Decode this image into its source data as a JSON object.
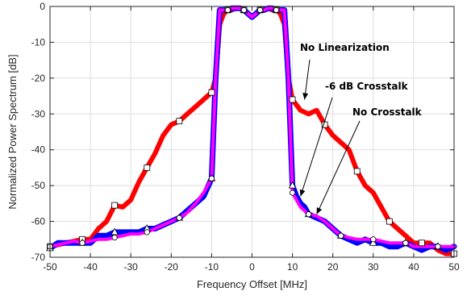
{
  "chart_data": {
    "type": "line",
    "xlabel": "Frequency Offset [MHz]",
    "ylabel": "Normalized Power Spectrum [dB]",
    "xlim": [
      -50,
      50
    ],
    "ylim": [
      -70,
      0
    ],
    "xticks": [
      -50,
      -40,
      -30,
      -20,
      -10,
      0,
      10,
      20,
      30,
      40,
      50
    ],
    "yticks": [
      0,
      -10,
      -20,
      -30,
      -40,
      -50,
      -60,
      -70
    ],
    "grid": true,
    "series": [
      {
        "name": "No Linearization",
        "color": "#ff0000",
        "marker": "square",
        "x": [
          -50,
          -48,
          -46,
          -44,
          -42,
          -40,
          -38,
          -36,
          -34,
          -32,
          -30,
          -28,
          -26,
          -24,
          -22,
          -20,
          -18,
          -16,
          -14,
          -12,
          -10,
          -9,
          -8,
          -7,
          -6,
          -5,
          -4,
          -3,
          -2,
          -1,
          0,
          1,
          2,
          3,
          4,
          5,
          6,
          7,
          8,
          9,
          10,
          12,
          14,
          16,
          18,
          20,
          22,
          24,
          26,
          28,
          30,
          32,
          34,
          36,
          38,
          40,
          42,
          44,
          46,
          48,
          50
        ],
        "y": [
          -67,
          -66.5,
          -66,
          -65.5,
          -65,
          -65,
          -62,
          -60,
          -55.5,
          -56,
          -54,
          -49,
          -45,
          -41,
          -36,
          -33,
          -32,
          -30,
          -28,
          -26,
          -24,
          -20,
          -5,
          -2,
          -1,
          -1,
          -0.5,
          -0.5,
          -1,
          -2,
          -3,
          -2,
          -1,
          -1,
          -0.5,
          -1,
          -1,
          -2,
          -5,
          -20,
          -26,
          -29,
          -30,
          -29,
          -33,
          -36,
          -38,
          -40,
          -46,
          -50,
          -52,
          -56,
          -60,
          -62,
          -64,
          -66,
          -66,
          -66,
          -68,
          -69,
          -69
        ]
      },
      {
        "name": "-6 dB Crosstalk",
        "color": "#0000ff",
        "marker": "triangle",
        "x": [
          -50,
          -48,
          -46,
          -44,
          -42,
          -40,
          -38,
          -36,
          -34,
          -32,
          -30,
          -28,
          -26,
          -24,
          -22,
          -20,
          -18,
          -16,
          -14,
          -12,
          -10,
          -9,
          -8,
          -7,
          -6,
          -5,
          -4,
          -3,
          -2,
          -1,
          0,
          1,
          2,
          3,
          4,
          5,
          6,
          7,
          8,
          9,
          10,
          11,
          12,
          13,
          14,
          16,
          18,
          20,
          22,
          24,
          26,
          28,
          30,
          32,
          34,
          36,
          38,
          40,
          42,
          44,
          46,
          48,
          50
        ],
        "y": [
          -67.5,
          -66,
          -66,
          -66,
          -66,
          -66,
          -64,
          -64,
          -63,
          -63,
          -63,
          -63,
          -62,
          -62,
          -61,
          -60,
          -59,
          -57,
          -55,
          -53,
          -48,
          -20,
          -1,
          -1,
          -1,
          -0.5,
          -0.5,
          -0.5,
          -1,
          -2,
          -3,
          -2,
          -1,
          -1,
          -0.5,
          -0.5,
          -1,
          -1,
          -1,
          -20,
          -50,
          -53,
          -55,
          -56,
          -58,
          -59,
          -60,
          -62,
          -64,
          -65,
          -66,
          -65,
          -66,
          -66,
          -67,
          -67,
          -66,
          -67,
          -68,
          -67,
          -67,
          -68,
          -67
        ]
      },
      {
        "name": "No Crosstalk",
        "color": "#ff00ff",
        "marker": "circle",
        "x": [
          -50,
          -48,
          -46,
          -44,
          -42,
          -40,
          -38,
          -36,
          -34,
          -32,
          -30,
          -28,
          -26,
          -24,
          -22,
          -20,
          -18,
          -16,
          -14,
          -12,
          -10,
          -9,
          -8,
          -7,
          -6,
          -5,
          -4,
          -3,
          -2,
          -1,
          0,
          1,
          2,
          3,
          4,
          5,
          6,
          7,
          8,
          9,
          10,
          11,
          12,
          13,
          14,
          16,
          18,
          20,
          22,
          24,
          26,
          28,
          30,
          32,
          34,
          36,
          38,
          40,
          42,
          44,
          46,
          48,
          50
        ],
        "y": [
          -67,
          -66.5,
          -66,
          -65.5,
          -66,
          -65.5,
          -65,
          -65,
          -64.5,
          -64,
          -63.5,
          -63.5,
          -63,
          -62,
          -61,
          -60,
          -59,
          -57.5,
          -55,
          -52,
          -48,
          -20,
          -1,
          -1,
          -1,
          -0.5,
          -0.5,
          -0.5,
          -1,
          -2,
          -3,
          -2,
          -1,
          -1,
          -0.5,
          -0.5,
          -1,
          -1,
          -1,
          -20,
          -52,
          -54,
          -56,
          -57,
          -58,
          -58.5,
          -60,
          -62,
          -64,
          -64.5,
          -65,
          -65,
          -65,
          -65.5,
          -66,
          -66,
          -66,
          -67,
          -67,
          -67,
          -67,
          -67,
          -67
        ]
      }
    ],
    "annotations": [
      {
        "text": "No Linearization",
        "target": [
          13,
          -26
        ]
      },
      {
        "text": "-6 dB Crosstalk",
        "target": [
          12,
          -53
        ]
      },
      {
        "text": "No Crosstalk",
        "target": [
          16,
          -58
        ]
      }
    ]
  }
}
